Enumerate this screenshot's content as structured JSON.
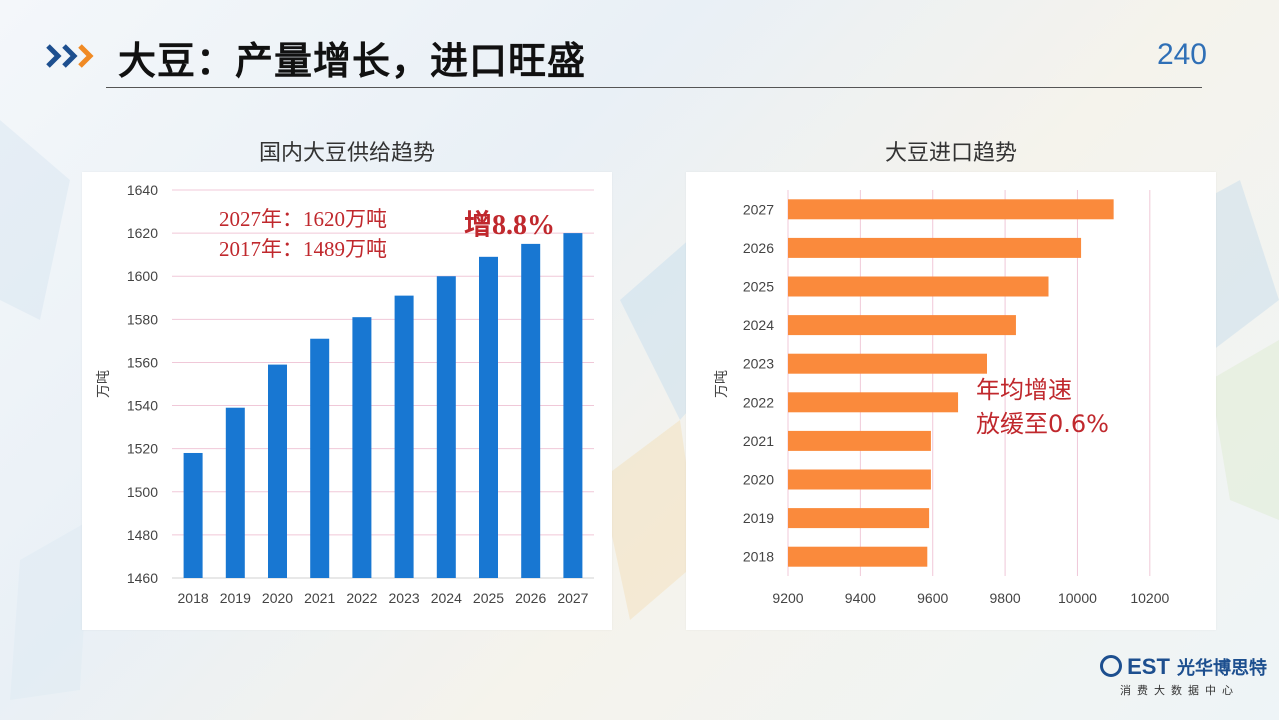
{
  "header": {
    "title": "大豆：产量增长，进口旺盛",
    "page_number": "240"
  },
  "left": {
    "title": "国内大豆供给趋势",
    "annotation_line1": "2027年：1620万吨",
    "annotation_line2": "2017年：1489万吨",
    "growth": "增8.8%"
  },
  "right": {
    "title": "大豆进口趋势",
    "annotation_line1": "年均增速",
    "annotation_line2": "放缓至0.6%"
  },
  "logo": {
    "brand": "EST",
    "brand_cn": "光华博思特",
    "subtitle": "消费大数据中心"
  },
  "chart_data": [
    {
      "type": "bar",
      "title": "国内大豆供给趋势",
      "ylabel": "万吨",
      "categories": [
        "2018",
        "2019",
        "2020",
        "2021",
        "2022",
        "2023",
        "2024",
        "2025",
        "2026",
        "2027"
      ],
      "values": [
        1518,
        1539,
        1559,
        1571,
        1581,
        1591,
        1600,
        1609,
        1615,
        1620
      ],
      "ylim": [
        1460,
        1640
      ],
      "yticks": [
        1460,
        1480,
        1500,
        1520,
        1540,
        1560,
        1580,
        1600,
        1620,
        1640
      ],
      "color": "#1877d2",
      "grid": true
    },
    {
      "type": "bar",
      "orientation": "horizontal",
      "title": "大豆进口趋势",
      "ylabel": "万吨",
      "categories": [
        "2018",
        "2019",
        "2020",
        "2021",
        "2022",
        "2023",
        "2024",
        "2025",
        "2026",
        "2027"
      ],
      "values": [
        9585,
        9590,
        9595,
        9595,
        9670,
        9750,
        9830,
        9920,
        10010,
        10100
      ],
      "xlim": [
        9200,
        10300
      ],
      "xticks": [
        9200,
        9400,
        9600,
        9800,
        10000,
        10200
      ],
      "color": "#fa8a3c",
      "grid": true
    }
  ]
}
